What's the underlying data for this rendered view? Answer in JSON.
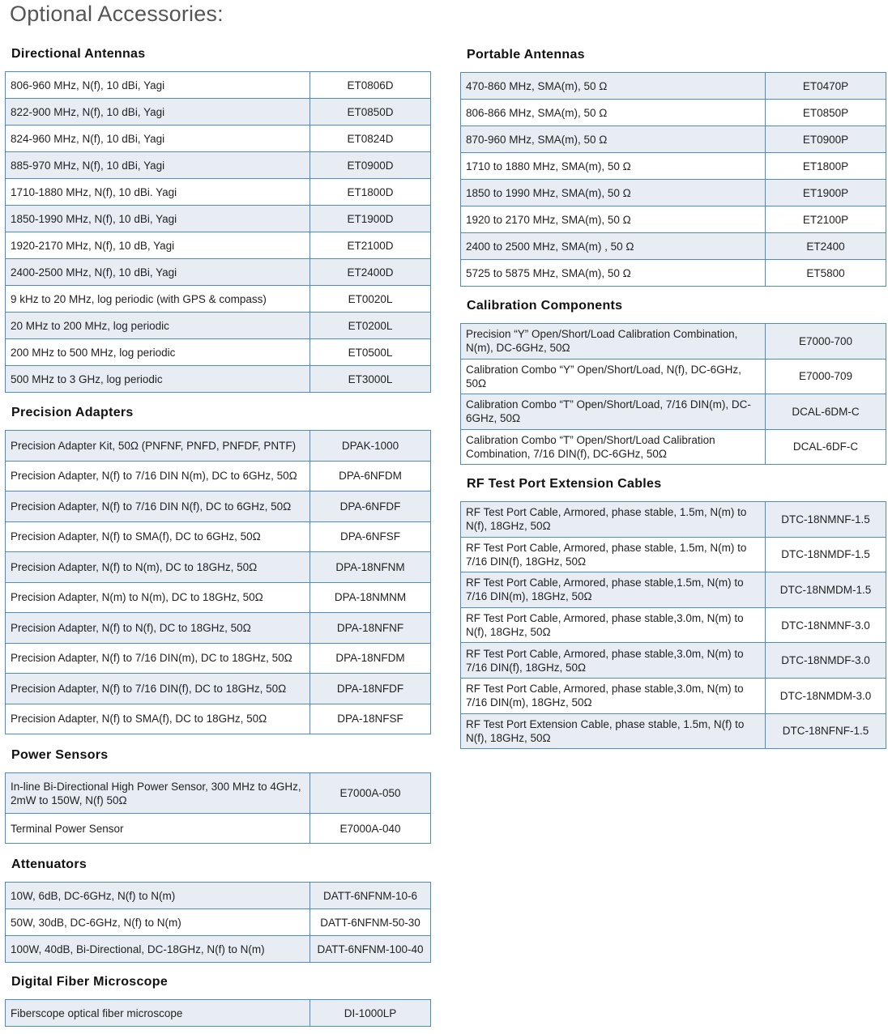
{
  "page_title": "Optional Accessories:",
  "colors": {
    "border": "#4a8cc4",
    "row_shade": "#e8edf4"
  },
  "sections": [
    {
      "id": "directional-antennas",
      "title": "Directional Antennas",
      "rows": [
        [
          "806-960 MHz, N(f), 10 dBi, Yagi",
          "ET0806D"
        ],
        [
          "822-900 MHz, N(f), 10 dBi, Yagi",
          "ET0850D"
        ],
        [
          "824-960 MHz, N(f), 10 dBi, Yagi",
          "ET0824D"
        ],
        [
          "885-970 MHz, N(f), 10 dBi, Yagi",
          "ET0900D"
        ],
        [
          "1710-1880 MHz, N(f), 10 dBi. Yagi",
          "ET1800D"
        ],
        [
          "1850-1990 MHz, N(f), 10 dBi, Yagi",
          "ET1900D"
        ],
        [
          "1920-2170 MHz, N(f), 10 dB, Yagi",
          "ET2100D"
        ],
        [
          "2400-2500 MHz, N(f), 10 dBi, Yagi",
          "ET2400D"
        ],
        [
          "9 kHz to 20 MHz, log periodic (with GPS & compass)",
          "ET0020L"
        ],
        [
          "20 MHz to 200 MHz, log periodic",
          "ET0200L"
        ],
        [
          "200 MHz to 500 MHz, log periodic",
          "ET0500L"
        ],
        [
          "500 MHz to 3 GHz, log periodic",
          "ET3000L"
        ]
      ]
    },
    {
      "id": "precision-adapters",
      "title": "Precision Adapters",
      "rows": [
        [
          "Precision Adapter Kit, 50Ω (PNFNF, PNFD, PNFDF, PNTF)",
          "DPAK-1000"
        ],
        [
          "Precision Adapter, N(f) to 7/16 DIN N(m), DC to 6GHz, 50Ω",
          "DPA-6NFDM"
        ],
        [
          "Precision Adapter, N(f) to 7/16 DIN N(f), DC to 6GHz, 50Ω",
          "DPA-6NFDF"
        ],
        [
          "Precision Adapter, N(f) to SMA(f), DC to 6GHz, 50Ω",
          "DPA-6NFSF"
        ],
        [
          "Precision Adapter, N(f) to N(m), DC to 18GHz, 50Ω",
          "DPA-18NFNM"
        ],
        [
          "Precision Adapter, N(m) to N(m), DC to 18GHz, 50Ω",
          "DPA-18NMNM"
        ],
        [
          "Precision Adapter, N(f) to N(f), DC to 18GHz, 50Ω",
          "DPA-18NFNF"
        ],
        [
          "Precision Adapter, N(f) to 7/16 DIN(m), DC to 18GHz, 50Ω",
          "DPA-18NFDM"
        ],
        [
          "Precision Adapter, N(f) to 7/16 DIN(f), DC to 18GHz, 50Ω",
          "DPA-18NFDF"
        ],
        [
          "Precision Adapter, N(f) to SMA(f), DC to 18GHz, 50Ω",
          "DPA-18NFSF"
        ]
      ]
    },
    {
      "id": "power-sensors",
      "title": "Power Sensors",
      "rows": [
        [
          "In-line Bi-Directional High Power Sensor, 300 MHz to 4GHz, 2mW to 150W, N(f) 50Ω",
          "E7000A-050"
        ],
        [
          "Terminal Power Sensor",
          "E7000A-040"
        ]
      ]
    },
    {
      "id": "attenuators",
      "title": "Attenuators",
      "rows": [
        [
          "10W, 6dB, DC-6GHz, N(f) to N(m)",
          "DATT-6NFNM-10-6"
        ],
        [
          "50W, 30dB, DC-6GHz, N(f) to N(m)",
          "DATT-6NFNM-50-30"
        ],
        [
          "100W, 40dB, Bi-Directional, DC-18GHz, N(f) to N(m)",
          "DATT-6NFNM-100-40"
        ]
      ]
    },
    {
      "id": "digital-fiber-microscope",
      "title": "Digital Fiber Microscope",
      "rows": [
        [
          "Fiberscope optical fiber microscope",
          "DI-1000LP"
        ]
      ]
    },
    {
      "id": "portable-antennas",
      "title": "Portable Antennas",
      "rows": [
        [
          "470-860 MHz, SMA(m), 50 Ω",
          "ET0470P"
        ],
        [
          "806-866 MHz, SMA(m), 50 Ω",
          "ET0850P"
        ],
        [
          "870-960 MHz, SMA(m), 50 Ω",
          "ET0900P"
        ],
        [
          "1710 to 1880 MHz, SMA(m), 50 Ω",
          "ET1800P"
        ],
        [
          "1850 to 1990 MHz, SMA(m), 50 Ω",
          "ET1900P"
        ],
        [
          "1920 to 2170 MHz, SMA(m), 50 Ω",
          "ET2100P"
        ],
        [
          "2400 to 2500 MHz, SMA(m) , 50 Ω",
          "ET2400"
        ],
        [
          "5725 to 5875 MHz, SMA(m), 50 Ω",
          "ET5800"
        ]
      ]
    },
    {
      "id": "calibration-components",
      "title": "Calibration Components",
      "rows": [
        [
          "Precision “Y”   Open/Short/Load Calibration Combination, N(m), DC-6GHz, 50Ω",
          "E7000-700"
        ],
        [
          "Calibration Combo “Y” Open/Short/Load, N(f), DC-6GHz, 50Ω",
          "E7000-709"
        ],
        [
          "Calibration Combo “T” Open/Short/Load, 7/16 DIN(m), DC-6GHz, 50Ω",
          "DCAL-6DM-C"
        ],
        [
          "Calibration Combo “T” Open/Short/Load Calibration Combination, 7/16 DIN(f), DC-6GHz, 50Ω",
          "DCAL-6DF-C"
        ]
      ]
    },
    {
      "id": "rf-test-port-extension-cables",
      "title": "RF Test Port Extension Cables",
      "rows": [
        [
          "RF Test Port Cable, Armored, phase stable, 1.5m, N(m) to N(f), 18GHz, 50Ω",
          "DTC-18NMNF-1.5"
        ],
        [
          "RF Test Port Cable, Armored, phase stable, 1.5m, N(m) to 7/16 DIN(f), 18GHz, 50Ω",
          "DTC-18NMDF-1.5"
        ],
        [
          "RF Test Port Cable, Armored, phase stable,1.5m, N(m) to 7/16 DIN(m), 18GHz, 50Ω",
          "DTC-18NMDM-1.5"
        ],
        [
          "RF Test Port Cable, Armored, phase stable,3.0m, N(m) to N(f), 18GHz, 50Ω",
          "DTC-18NMNF-3.0"
        ],
        [
          "RF Test Port Cable, Armored, phase stable,3.0m, N(m) to 7/16 DIN(f), 18GHz, 50Ω",
          "DTC-18NMDF-3.0"
        ],
        [
          "RF Test Port Cable, Armored, phase stable,3.0m, N(m) to 7/16 DIN(m), 18GHz, 50Ω",
          "DTC-18NMDM-3.0"
        ],
        [
          "RF Test Port Extension Cable, phase stable, 1.5m, N(f) to N(f), 18GHz, 50Ω",
          "DTC-18NFNF-1.5"
        ]
      ]
    }
  ]
}
